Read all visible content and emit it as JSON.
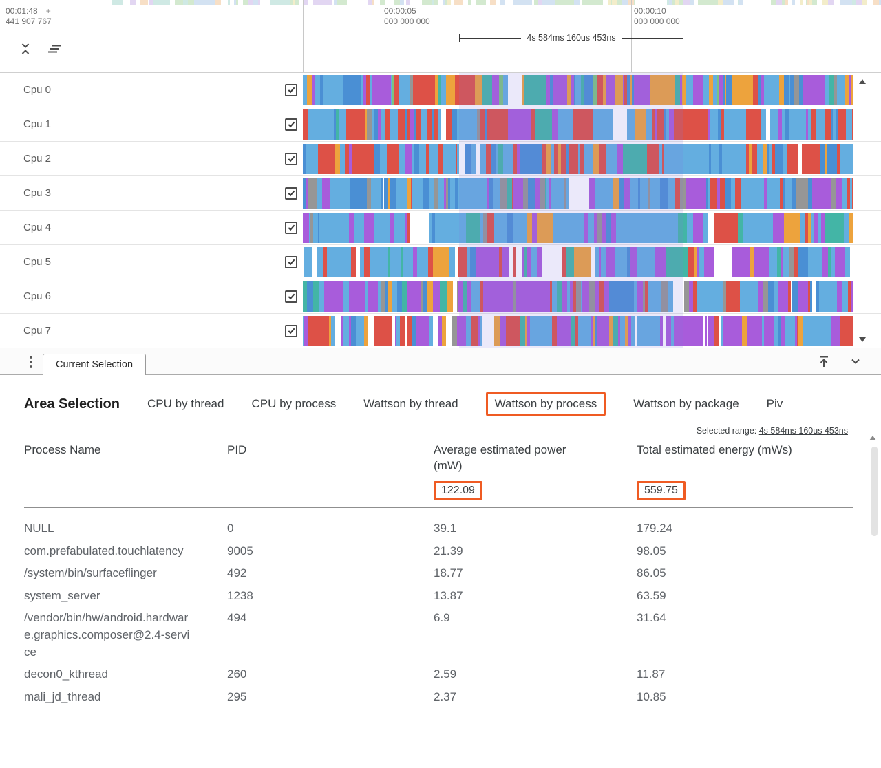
{
  "colors": {
    "highlight": "#ef5b23"
  },
  "timeline": {
    "clock": {
      "primary": "00:01:48",
      "plus": "+",
      "secondary": "441 907 767"
    },
    "ruler_marks": [
      {
        "time": "00:00:05",
        "sub": "000 000 000"
      },
      {
        "time": "00:00:10",
        "sub": "000 000 000"
      }
    ],
    "selection_duration": "4s 584ms 160us 453ns",
    "selection_fill": "rgba(131,120,226,0.16)",
    "palette": {
      "lightblue": "#64aee0",
      "blue": "#4a8fd4",
      "purple": "#a85cdb",
      "red": "#dd5147",
      "orange": "#eda33d",
      "teal": "#43b5a6",
      "gray": "#969696",
      "green": "#7cc47f",
      "white": "#ffffff",
      "pgreen": "#d3e9cf",
      "pblue": "#d3e2f2",
      "pteal": "#cfe9e4",
      "ppurple": "#e2d6f2",
      "pyellow": "#f3edca",
      "porange": "#f7dfc6"
    },
    "overview_mix": {
      "white": 34,
      "pgreen": 16,
      "pblue": 14,
      "pteal": 10,
      "ppurple": 9,
      "pyellow": 9,
      "porange": 8
    },
    "tracks": [
      {
        "label": "Cpu 0",
        "checked": true,
        "mix": {
          "lightblue": 25,
          "blue": 15,
          "purple": 20,
          "orange": 12,
          "red": 10,
          "teal": 8,
          "gray": 5,
          "green": 3,
          "white": 2
        }
      },
      {
        "label": "Cpu 1",
        "checked": true,
        "mix": {
          "red": 28,
          "lightblue": 30,
          "purple": 16,
          "blue": 12,
          "orange": 6,
          "teal": 4,
          "white": 2,
          "gray": 2
        }
      },
      {
        "label": "Cpu 2",
        "checked": true,
        "mix": {
          "lightblue": 32,
          "red": 30,
          "blue": 14,
          "purple": 10,
          "orange": 6,
          "teal": 4,
          "white": 2,
          "gray": 2
        }
      },
      {
        "label": "Cpu 3",
        "checked": true,
        "mix": {
          "lightblue": 40,
          "blue": 14,
          "purple": 14,
          "red": 12,
          "gray": 10,
          "orange": 5,
          "teal": 3,
          "white": 2
        }
      },
      {
        "label": "Cpu 4",
        "checked": true,
        "mix": {
          "lightblue": 48,
          "purple": 20,
          "blue": 12,
          "red": 6,
          "teal": 5,
          "orange": 4,
          "white": 3,
          "gray": 2
        }
      },
      {
        "label": "Cpu 5",
        "checked": true,
        "mix": {
          "purple": 32,
          "lightblue": 26,
          "blue": 8,
          "red": 10,
          "white": 12,
          "orange": 6,
          "teal": 4,
          "gray": 2
        }
      },
      {
        "label": "Cpu 6",
        "checked": true,
        "mix": {
          "purple": 36,
          "lightblue": 22,
          "gray": 12,
          "blue": 10,
          "red": 8,
          "teal": 5,
          "white": 4,
          "orange": 3
        }
      },
      {
        "label": "Cpu 7",
        "checked": true,
        "mix": {
          "purple": 28,
          "lightblue": 26,
          "red": 14,
          "blue": 8,
          "white": 10,
          "orange": 8,
          "teal": 4,
          "gray": 2
        }
      }
    ]
  },
  "tabstrip": {
    "tab": "Current Selection"
  },
  "details": {
    "title": "Area Selection",
    "tabs": [
      {
        "label": "CPU by thread"
      },
      {
        "label": "CPU by process"
      },
      {
        "label": "Wattson by thread"
      },
      {
        "label": "Wattson by process",
        "active": true
      },
      {
        "label": "Wattson by package"
      },
      {
        "label": "Piv"
      }
    ],
    "selected_range": {
      "label": "Selected range:",
      "value": "4s 584ms 160us 453ns"
    },
    "table": {
      "columns": [
        "Process Name",
        "PID",
        "Average estimated power (mW)",
        "Total estimated energy (mWs)"
      ],
      "totals": {
        "power": "122.09",
        "energy": "559.75"
      },
      "rows": [
        {
          "name": "NULL",
          "pid": "0",
          "power": "39.1",
          "energy": "179.24"
        },
        {
          "name": "com.prefabulated.touchlatency",
          "pid": "9005",
          "power": "21.39",
          "energy": "98.05"
        },
        {
          "name": "/system/bin/surfaceflinger",
          "pid": "492",
          "power": "18.77",
          "energy": "86.05"
        },
        {
          "name": "system_server",
          "pid": "1238",
          "power": "13.87",
          "energy": "63.59"
        },
        {
          "name": "/vendor/bin/hw/android.hardware.graphics.composer@2.4-service",
          "pid": "494",
          "power": "6.9",
          "energy": "31.64"
        },
        {
          "name": "decon0_kthread",
          "pid": "260",
          "power": "2.59",
          "energy": "11.87"
        },
        {
          "name": "mali_jd_thread",
          "pid": "295",
          "power": "2.37",
          "energy": "10.85"
        }
      ]
    }
  }
}
